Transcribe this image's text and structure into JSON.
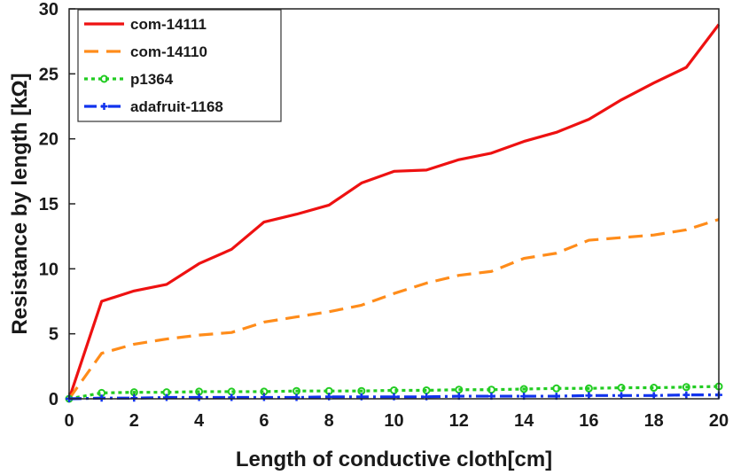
{
  "chart_data": {
    "type": "line",
    "xlabel": "Length of conductive cloth[cm]",
    "ylabel": "Resistance by length [kΩ]",
    "xlim": [
      0,
      20
    ],
    "ylim": [
      0,
      30
    ],
    "xticks": [
      "0",
      "2",
      "4",
      "6",
      "8",
      "10",
      "12",
      "14",
      "16",
      "18",
      "20"
    ],
    "yticks": [
      "0",
      "5",
      "10",
      "15",
      "20",
      "25",
      "30"
    ],
    "grid": false,
    "legend_position": "top-left",
    "x": [
      0,
      1,
      2,
      3,
      4,
      5,
      6,
      7,
      8,
      9,
      10,
      11,
      12,
      13,
      14,
      15,
      16,
      17,
      18,
      19,
      20
    ],
    "series": [
      {
        "name": "com-14111",
        "color": "#ee1111",
        "style": "solid",
        "marker": "none",
        "values": [
          0,
          7.5,
          8.3,
          8.8,
          10.4,
          11.5,
          13.6,
          14.2,
          14.9,
          16.6,
          17.5,
          17.6,
          18.4,
          18.9,
          19.8,
          20.5,
          21.5,
          23.0,
          24.3,
          25.5,
          28.8
        ]
      },
      {
        "name": "com-14110",
        "color": "#ff8c1a",
        "style": "dashed",
        "marker": "none",
        "values": [
          0,
          3.5,
          4.2,
          4.6,
          4.9,
          5.1,
          5.9,
          6.3,
          6.7,
          7.2,
          8.1,
          8.9,
          9.5,
          9.8,
          10.8,
          11.2,
          12.2,
          12.4,
          12.6,
          13.0,
          13.8
        ]
      },
      {
        "name": "p1364",
        "color": "#22cc22",
        "style": "dotted",
        "marker": "circle",
        "values": [
          0,
          0.45,
          0.5,
          0.5,
          0.55,
          0.55,
          0.55,
          0.6,
          0.6,
          0.6,
          0.65,
          0.65,
          0.7,
          0.7,
          0.75,
          0.8,
          0.8,
          0.85,
          0.85,
          0.9,
          0.95
        ]
      },
      {
        "name": "adafruit-1168",
        "color": "#1133ee",
        "style": "dashdot",
        "marker": "plus",
        "values": [
          0,
          0.05,
          0.05,
          0.1,
          0.1,
          0.1,
          0.1,
          0.1,
          0.15,
          0.15,
          0.15,
          0.15,
          0.2,
          0.2,
          0.2,
          0.2,
          0.25,
          0.25,
          0.25,
          0.3,
          0.3
        ]
      }
    ]
  }
}
